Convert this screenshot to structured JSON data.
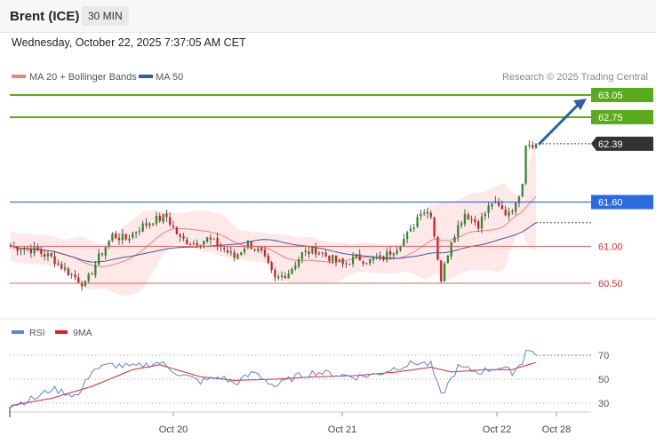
{
  "header": {
    "title": "Brent (ICE)",
    "interval": "30 MIN"
  },
  "datetime": "Wednesday, October 22, 2025 7:37:05 AM CET",
  "legend": {
    "ma20": "MA 20 + Bollinger Bands",
    "ma50": "MA 50",
    "ma20_color": "#f08080",
    "ma50_color": "#355d9e",
    "credit": "Research © 2025 Trading Central"
  },
  "rsi_legend": {
    "rsi": "RSI",
    "ma9": "9MA",
    "rsi_color": "#5b84d6",
    "ma9_color": "#e02020"
  },
  "colors": {
    "up": "#2e8b2e",
    "down": "#d02020",
    "target": "#5aab1a",
    "pivot": "#2a6be0",
    "support": "#e06060",
    "arrow": "#2f5fa6",
    "band": "#fde0e0"
  },
  "chart_data": [
    {
      "type": "candlestick",
      "xlabel": "",
      "ylabel": "",
      "ylim": [
        60.12,
        63.45
      ],
      "x_ticks": [
        "Oct 20",
        "Oct 21",
        "Oct 22",
        "Oct 28"
      ],
      "indicators": [
        "MA 20 + Bollinger Bands",
        "MA 50"
      ],
      "levels": [
        {
          "label": "63.05",
          "value": 63.05,
          "role": "target"
        },
        {
          "label": "62.75",
          "value": 62.75,
          "role": "target"
        },
        {
          "label": "62.39",
          "value": 62.39,
          "role": "last"
        },
        {
          "label": "61.60",
          "value": 61.6,
          "role": "pivot"
        },
        {
          "label": "61.00",
          "value": 61.0,
          "role": "support"
        },
        {
          "label": "60.50",
          "value": 60.5,
          "role": "support"
        }
      ],
      "trend_arrow": {
        "from": 62.38,
        "to": 63.0,
        "direction": "up"
      },
      "close_path": [
        {
          "t": 0,
          "v": 61.0
        },
        {
          "t": 7,
          "v": 60.95
        },
        {
          "t": 12,
          "v": 60.85
        },
        {
          "t": 17,
          "v": 60.65
        },
        {
          "t": 22,
          "v": 60.48
        },
        {
          "t": 26,
          "v": 60.85
        },
        {
          "t": 30,
          "v": 61.15
        },
        {
          "t": 34,
          "v": 61.1
        },
        {
          "t": 38,
          "v": 61.25
        },
        {
          "t": 42,
          "v": 61.35
        },
        {
          "t": 46,
          "v": 61.4
        },
        {
          "t": 50,
          "v": 61.1
        },
        {
          "t": 54,
          "v": 61.05
        },
        {
          "t": 58,
          "v": 61.1
        },
        {
          "t": 62,
          "v": 61.0
        },
        {
          "t": 66,
          "v": 60.85
        },
        {
          "t": 70,
          "v": 61.05
        },
        {
          "t": 74,
          "v": 60.9
        },
        {
          "t": 78,
          "v": 60.55
        },
        {
          "t": 82,
          "v": 60.65
        },
        {
          "t": 86,
          "v": 60.9
        },
        {
          "t": 90,
          "v": 60.95
        },
        {
          "t": 94,
          "v": 60.85
        },
        {
          "t": 98,
          "v": 60.75
        },
        {
          "t": 102,
          "v": 60.85
        },
        {
          "t": 106,
          "v": 60.8
        },
        {
          "t": 110,
          "v": 60.85
        },
        {
          "t": 114,
          "v": 61.0
        },
        {
          "t": 118,
          "v": 61.2
        },
        {
          "t": 121,
          "v": 61.5
        },
        {
          "t": 124,
          "v": 61.45
        },
        {
          "t": 127,
          "v": 60.55
        },
        {
          "t": 130,
          "v": 61.1
        },
        {
          "t": 134,
          "v": 61.45
        },
        {
          "t": 138,
          "v": 61.3
        },
        {
          "t": 142,
          "v": 61.6
        },
        {
          "t": 146,
          "v": 61.45
        },
        {
          "t": 149,
          "v": 61.55
        },
        {
          "t": 151,
          "v": 61.9
        },
        {
          "t": 152,
          "v": 62.4
        },
        {
          "t": 155,
          "v": 62.39
        }
      ]
    },
    {
      "type": "line",
      "name": "RSI",
      "ylim": [
        20,
        80
      ],
      "y_ticks": [
        30,
        50,
        70
      ],
      "x_ticks": [
        "Oct 20",
        "Oct 21",
        "Oct 22",
        "Oct 28"
      ],
      "series": [
        {
          "name": "RSI",
          "points": [
            {
              "t": 0,
              "v": 28
            },
            {
              "t": 8,
              "v": 35
            },
            {
              "t": 12,
              "v": 42
            },
            {
              "t": 20,
              "v": 36
            },
            {
              "t": 24,
              "v": 58
            },
            {
              "t": 30,
              "v": 62
            },
            {
              "t": 36,
              "v": 60
            },
            {
              "t": 44,
              "v": 64
            },
            {
              "t": 50,
              "v": 54
            },
            {
              "t": 56,
              "v": 48
            },
            {
              "t": 62,
              "v": 52
            },
            {
              "t": 66,
              "v": 46
            },
            {
              "t": 72,
              "v": 56
            },
            {
              "t": 78,
              "v": 44
            },
            {
              "t": 84,
              "v": 52
            },
            {
              "t": 90,
              "v": 56
            },
            {
              "t": 96,
              "v": 54
            },
            {
              "t": 102,
              "v": 52
            },
            {
              "t": 108,
              "v": 54
            },
            {
              "t": 114,
              "v": 60
            },
            {
              "t": 120,
              "v": 64
            },
            {
              "t": 124,
              "v": 62
            },
            {
              "t": 127,
              "v": 36
            },
            {
              "t": 132,
              "v": 60
            },
            {
              "t": 138,
              "v": 56
            },
            {
              "t": 144,
              "v": 60
            },
            {
              "t": 148,
              "v": 56
            },
            {
              "t": 151,
              "v": 64
            },
            {
              "t": 152,
              "v": 76
            },
            {
              "t": 155,
              "v": 70
            }
          ]
        },
        {
          "name": "9MA",
          "points": [
            {
              "t": 0,
              "v": 28
            },
            {
              "t": 12,
              "v": 34
            },
            {
              "t": 24,
              "v": 44
            },
            {
              "t": 36,
              "v": 58
            },
            {
              "t": 44,
              "v": 62
            },
            {
              "t": 56,
              "v": 52
            },
            {
              "t": 66,
              "v": 49
            },
            {
              "t": 78,
              "v": 50
            },
            {
              "t": 90,
              "v": 52
            },
            {
              "t": 102,
              "v": 53
            },
            {
              "t": 114,
              "v": 56
            },
            {
              "t": 124,
              "v": 60
            },
            {
              "t": 130,
              "v": 56
            },
            {
              "t": 140,
              "v": 58
            },
            {
              "t": 148,
              "v": 58
            },
            {
              "t": 155,
              "v": 64
            }
          ]
        }
      ]
    }
  ]
}
